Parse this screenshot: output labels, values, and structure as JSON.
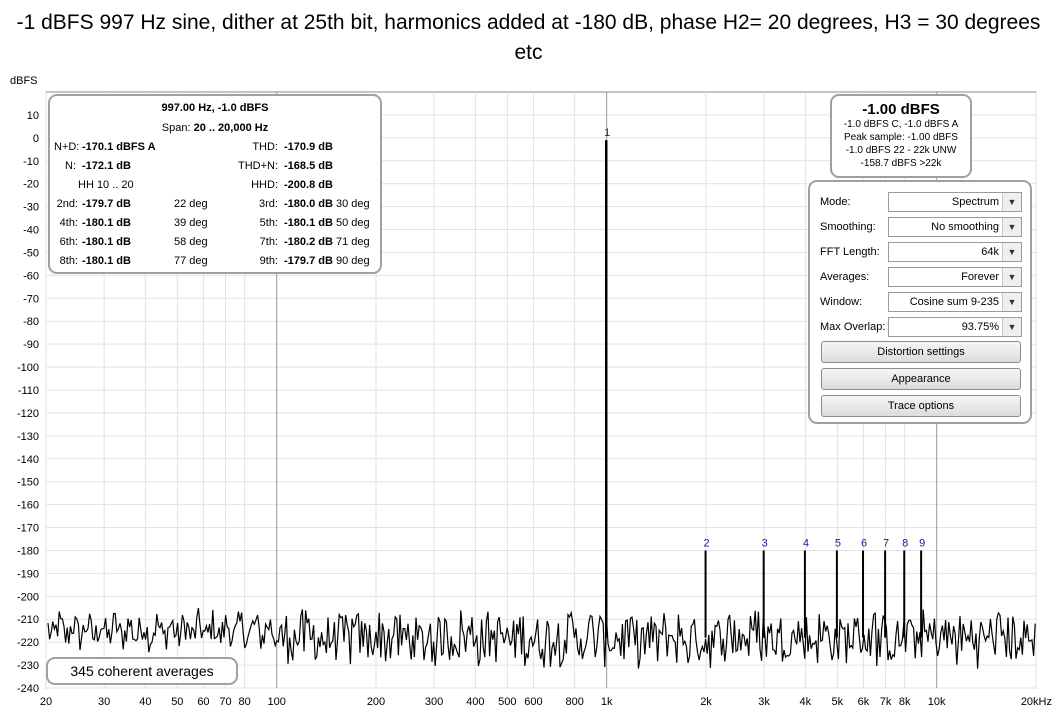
{
  "chart_data": {
    "type": "line",
    "title": "-1 dBFS 997 Hz sine, dither at 25th bit, harmonics added at -180 dB, phase H2= 20 degrees, H3 = 30 degrees etc",
    "ylabel": "dBFS",
    "xscale": "log",
    "xlim": [
      20,
      20000
    ],
    "ylim": [
      -240,
      20
    ],
    "yticks": [
      10,
      0,
      -10,
      -20,
      -30,
      -40,
      -50,
      -60,
      -70,
      -80,
      -90,
      -100,
      -110,
      -120,
      -130,
      -140,
      -150,
      -160,
      -170,
      -180,
      -190,
      -200,
      -210,
      -220,
      -230,
      -240
    ],
    "xticks": [
      {
        "v": 20,
        "label": "20"
      },
      {
        "v": 30,
        "label": "30"
      },
      {
        "v": 40,
        "label": "40"
      },
      {
        "v": 50,
        "label": "50"
      },
      {
        "v": 60,
        "label": "60"
      },
      {
        "v": 70,
        "label": "70"
      },
      {
        "v": 80,
        "label": "80"
      },
      {
        "v": 100,
        "label": "100"
      },
      {
        "v": 200,
        "label": "200"
      },
      {
        "v": 300,
        "label": "300"
      },
      {
        "v": 400,
        "label": "400"
      },
      {
        "v": 500,
        "label": "500"
      },
      {
        "v": 600,
        "label": "600"
      },
      {
        "v": 800,
        "label": "800"
      },
      {
        "v": 1000,
        "label": "1k"
      },
      {
        "v": 2000,
        "label": "2k"
      },
      {
        "v": 3000,
        "label": "3k"
      },
      {
        "v": 4000,
        "label": "4k"
      },
      {
        "v": 5000,
        "label": "5k"
      },
      {
        "v": 6000,
        "label": "6k"
      },
      {
        "v": 7000,
        "label": "7k"
      },
      {
        "v": 8000,
        "label": "8k"
      },
      {
        "v": 10000,
        "label": "10k"
      },
      {
        "v": 20000,
        "label": "20kHz"
      }
    ],
    "major_grid_x": [
      100,
      1000,
      10000
    ],
    "peaks": [
      {
        "label": "1",
        "f": 997,
        "db": -1
      },
      {
        "label": "2",
        "f": 1994,
        "db": -180
      },
      {
        "label": "3",
        "f": 2991,
        "db": -180
      },
      {
        "label": "4",
        "f": 3988,
        "db": -180
      },
      {
        "label": "5",
        "f": 4985,
        "db": -180
      },
      {
        "label": "6",
        "f": 5982,
        "db": -180
      },
      {
        "label": "7",
        "f": 6979,
        "db": -180
      },
      {
        "label": "8",
        "f": 7976,
        "db": -180
      },
      {
        "label": "9",
        "f": 8973,
        "db": -180
      }
    ],
    "noise_floor_db": -215,
    "grid": true,
    "line_color": "#000000",
    "marker_color": "#1a1aa0"
  },
  "stats": {
    "header": "997.00 Hz, -1.0 dBFS",
    "span_label": "Span:",
    "span_value": "20 .. 20,000 Hz",
    "nd_label": "N+D:",
    "nd_value": "-170.1 dBFS A",
    "thd_label": "THD:",
    "thd_value": "-170.9 dB",
    "n_label": "N:",
    "n_value": "-172.1 dB",
    "thdn_label": "THD+N:",
    "thdn_value": "-168.5 dB",
    "hh_label": "HH 10 .. 20",
    "hhd_label": "HHD:",
    "hhd_value": "-200.8 dB",
    "harmonics": [
      {
        "label": "2nd:",
        "value": "-179.7 dB",
        "phase": "22 deg"
      },
      {
        "label": "3rd:",
        "value": "-180.0 dB",
        "phase": "30 deg"
      },
      {
        "label": "4th:",
        "value": "-180.1 dB",
        "phase": "39 deg"
      },
      {
        "label": "5th:",
        "value": "-180.1 dB",
        "phase": "50 deg"
      },
      {
        "label": "6th:",
        "value": "-180.1 dB",
        "phase": "58 deg"
      },
      {
        "label": "7th:",
        "value": "-180.2 dB",
        "phase": "71 deg"
      },
      {
        "label": "8th:",
        "value": "-180.1 dB",
        "phase": "77 deg"
      },
      {
        "label": "9th:",
        "value": "-179.7 dB",
        "phase": "90 deg"
      }
    ]
  },
  "peak_box": {
    "main": "-1.00 dBFS",
    "line1": "-1.0 dBFS C, -1.0 dBFS A",
    "line2": "Peak sample: -1.00 dBFS",
    "line3": "-1.0 dBFS 22 - 22k UNW",
    "line4": "-158.7 dBFS >22k"
  },
  "controls": {
    "mode": {
      "label": "Mode:",
      "value": "Spectrum"
    },
    "smoothing": {
      "label": "Smoothing:",
      "value": "No  smoothing"
    },
    "fft_length": {
      "label": "FFT Length:",
      "value": "64k"
    },
    "averages": {
      "label": "Averages:",
      "value": "Forever"
    },
    "window": {
      "label": "Window:",
      "value": "Cosine sum 9-235"
    },
    "max_overlap": {
      "label": "Max Overlap:",
      "value": "93.75%"
    },
    "distortion_button": "Distortion settings",
    "appearance_button": "Appearance",
    "trace_button": "Trace options"
  },
  "averages_label": "345 coherent averages"
}
